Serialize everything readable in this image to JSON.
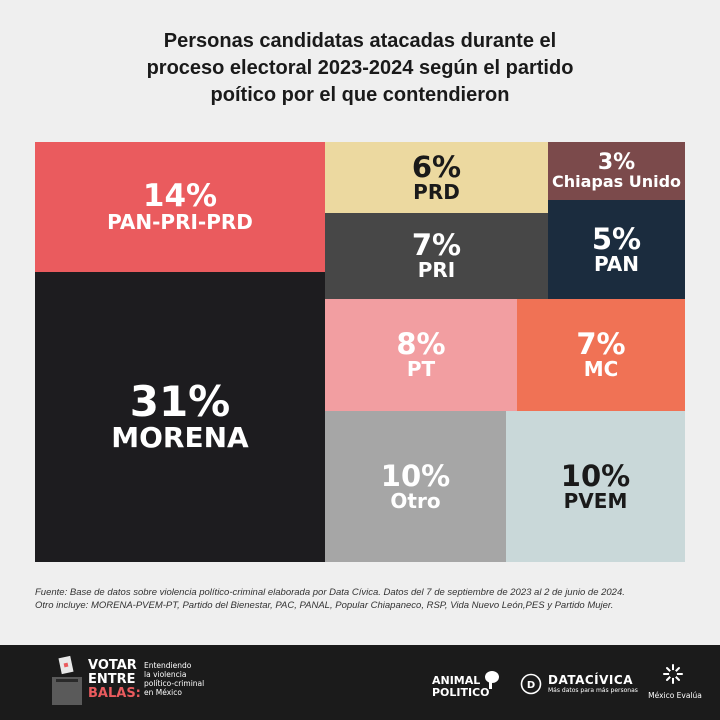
{
  "title_lines": [
    "Personas candidatas atacadas durante el",
    "proceso electoral 2023-2024 según el partido",
    "poítico por el que contendieron"
  ],
  "chart_data": {
    "type": "treemap",
    "unit": "%",
    "items": [
      {
        "label": "MORENA",
        "value": 31,
        "display": "31%",
        "color": "#1d1c1f",
        "text_color": "#ffffff"
      },
      {
        "label": "PAN-PRI-PRD",
        "value": 14,
        "display": "14%",
        "color": "#ea5b5e",
        "text_color": "#ffffff"
      },
      {
        "label": "Otro",
        "value": 10,
        "display": "10%",
        "color": "#a6a6a6",
        "text_color": "#ffffff"
      },
      {
        "label": "PVEM",
        "value": 10,
        "display": "10%",
        "color": "#c9d8d9",
        "text_color": "#1a1a1a"
      },
      {
        "label": "PT",
        "value": 8,
        "display": "8%",
        "color": "#f29ea1",
        "text_color": "#ffffff"
      },
      {
        "label": "PRI",
        "value": 7,
        "display": "7%",
        "color": "#474747",
        "text_color": "#ffffff"
      },
      {
        "label": "MC",
        "value": 7,
        "display": "7%",
        "color": "#f07255",
        "text_color": "#ffffff"
      },
      {
        "label": "PRD",
        "value": 6,
        "display": "6%",
        "color": "#ecd9a0",
        "text_color": "#1a1a1a"
      },
      {
        "label": "PAN",
        "value": 5,
        "display": "5%",
        "color": "#1b2c3e",
        "text_color": "#ffffff"
      },
      {
        "label": "Chiapas Unido",
        "value": 3,
        "display": "3%",
        "color": "#7b4a4b",
        "text_color": "#ffffff"
      }
    ]
  },
  "source_lines": [
    "Fuente: Base de datos sobre violencia político-criminal elaborada por Data Cívica. Datos del 7 de septiembre de 2023 al 2 de junio de 2024.",
    "Otro incluye: MORENA-PVEM-PT, Partido del Bienestar, PAC, PANAL, Popular Chiapaneco, RSP, Vida Nuevo León,PES y Partido Mujer."
  ],
  "footer": {
    "votar": {
      "line1": "VOTAR",
      "line2": "ENTRE",
      "line3": "BALAS:"
    },
    "votar_tagline": [
      "Entendiendo",
      "la violencia",
      "político-criminal",
      "en México"
    ],
    "animal": {
      "line1": "ANIMAL",
      "line2": "POLITICO"
    },
    "datacivica": {
      "name": "DATACÍVICA",
      "tagline": "Más datos para más personas"
    },
    "mexico_evalua": "México Evalúa"
  }
}
